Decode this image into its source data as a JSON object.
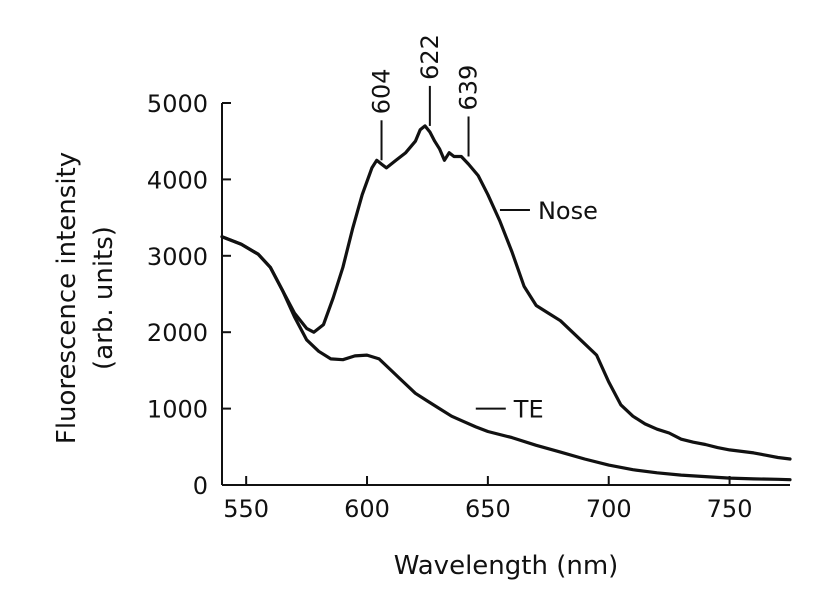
{
  "chart_data": {
    "type": "line",
    "xlabel": "Wavelength (nm)",
    "ylabel_lines": [
      "Fluorescence intensity",
      "(arb. units)"
    ],
    "xlim": [
      540,
      775
    ],
    "ylim": [
      0,
      5000
    ],
    "x_ticks": [
      550,
      600,
      650,
      700,
      750
    ],
    "y_ticks": [
      0,
      1000,
      2000,
      3000,
      4000,
      5000
    ],
    "grid": false,
    "series": [
      {
        "name": "Nose",
        "label_at": [
          655,
          3600
        ],
        "x": [
          540,
          548,
          555,
          560,
          565,
          570,
          575,
          578,
          582,
          586,
          590,
          594,
          598,
          602,
          604,
          606,
          608,
          612,
          616,
          620,
          622,
          624,
          626,
          628,
          630,
          632,
          634,
          636,
          639,
          642,
          646,
          650,
          655,
          660,
          665,
          670,
          675,
          680,
          685,
          690,
          695,
          700,
          705,
          710,
          715,
          720,
          725,
          730,
          735,
          740,
          745,
          750,
          755,
          760,
          765,
          770,
          775
        ],
        "y": [
          3250,
          3150,
          3020,
          2850,
          2550,
          2250,
          2050,
          2000,
          2100,
          2450,
          2850,
          3350,
          3800,
          4150,
          4250,
          4200,
          4150,
          4250,
          4350,
          4500,
          4650,
          4700,
          4620,
          4500,
          4400,
          4250,
          4350,
          4300,
          4300,
          4200,
          4050,
          3800,
          3450,
          3050,
          2600,
          2350,
          2250,
          2150,
          2000,
          1850,
          1700,
          1350,
          1050,
          900,
          800,
          730,
          680,
          600,
          560,
          530,
          490,
          460,
          440,
          420,
          390,
          360,
          340
        ]
      },
      {
        "name": "TE",
        "label_at": [
          645,
          1000
        ],
        "x": [
          540,
          548,
          555,
          560,
          565,
          570,
          575,
          580,
          585,
          590,
          595,
          600,
          605,
          610,
          615,
          620,
          625,
          630,
          635,
          640,
          645,
          650,
          660,
          670,
          680,
          690,
          700,
          710,
          720,
          730,
          740,
          750,
          760,
          770,
          775
        ],
        "y": [
          3250,
          3150,
          3020,
          2850,
          2550,
          2200,
          1900,
          1750,
          1650,
          1640,
          1690,
          1700,
          1650,
          1500,
          1350,
          1200,
          1100,
          1000,
          900,
          830,
          760,
          700,
          620,
          520,
          430,
          340,
          260,
          200,
          160,
          130,
          110,
          90,
          80,
          75,
          70
        ]
      }
    ],
    "annotations": [
      {
        "label": "604",
        "x": 606,
        "y": 4250
      },
      {
        "label": "622",
        "x": 626,
        "y": 4700
      },
      {
        "label": "639",
        "x": 642,
        "y": 4300
      }
    ]
  }
}
